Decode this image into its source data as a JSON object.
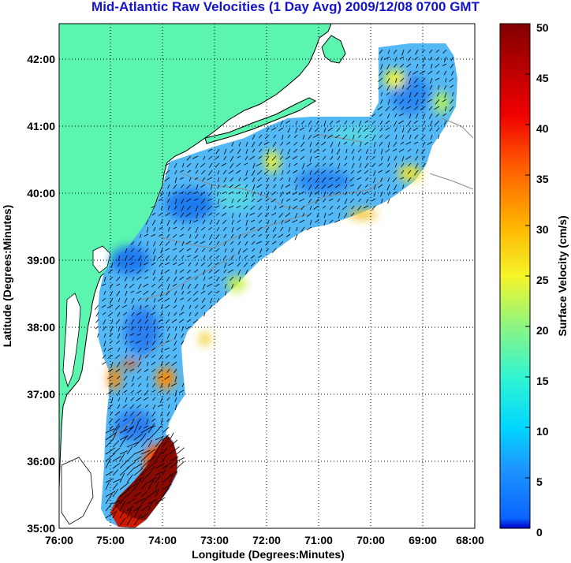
{
  "title": "Mid-Atlantic Raw Velocities (1 Day Avg) 2009/12/08 0700 GMT",
  "xlabel": "Longitude (Degrees:Minutes)",
  "ylabel": "Latitude (Degrees:Minutes)",
  "colorbar": {
    "label": "Surface Velocity (cm/s)",
    "ticks": [
      "0",
      "5",
      "10",
      "15",
      "20",
      "25",
      "30",
      "35",
      "40",
      "45",
      "50"
    ],
    "range": [
      0,
      50
    ]
  },
  "x_ticks": [
    "76:00",
    "75:00",
    "74:00",
    "73:00",
    "72:00",
    "71:00",
    "70:00",
    "69:00",
    "68:00"
  ],
  "y_ticks": [
    "35:00",
    "36:00",
    "37:00",
    "38:00",
    "39:00",
    "40:00",
    "41:00",
    "42:00"
  ],
  "map": {
    "lon_range": [
      -76,
      -68
    ],
    "lat_range": [
      35,
      42.5
    ],
    "land_color": "#5cf5b0",
    "grid": "dotted",
    "coastline_color": "#000000",
    "bathymetry_color": "#8a8a8a"
  }
}
